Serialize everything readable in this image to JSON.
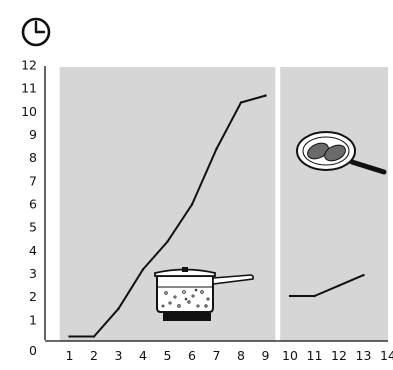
{
  "chart_data": {
    "type": "line",
    "title": "",
    "xlabel": "",
    "ylabel": "",
    "icon": "clock-icon",
    "x_ticks": [
      "1",
      "2",
      "3",
      "4",
      "5",
      "6",
      "7",
      "8",
      "9",
      "10",
      "11",
      "12",
      "13",
      "14"
    ],
    "y_ticks": [
      "0",
      "1",
      "2",
      "3",
      "4",
      "5",
      "6",
      "7",
      "8",
      "9",
      "10",
      "11",
      "12"
    ],
    "xlim": [
      1,
      14
    ],
    "ylim": [
      0,
      12
    ],
    "panels": [
      {
        "name": "pot-panel",
        "picture": "cooking-pot-icon",
        "x_range": [
          0.6,
          9.4
        ],
        "series": [
          {
            "x": [
              1,
              2,
              3,
              4,
              5,
              6,
              7,
              8,
              9
            ],
            "y": [
              0.3,
              0.3,
              1.5,
              3.2,
              4.4,
              6.0,
              8.4,
              10.4,
              10.7
            ]
          }
        ]
      },
      {
        "name": "pan-panel",
        "picture": "frying-pan-icon",
        "x_range": [
          9.6,
          14.6
        ],
        "series": [
          {
            "x": [
              10,
              11,
              12,
              13
            ],
            "y": [
              2.05,
              2.05,
              2.5,
              2.95
            ]
          }
        ]
      }
    ],
    "grid": false,
    "colors": {
      "panel": "#d6d6d6",
      "line": "#111111",
      "axis": "#111111"
    }
  }
}
